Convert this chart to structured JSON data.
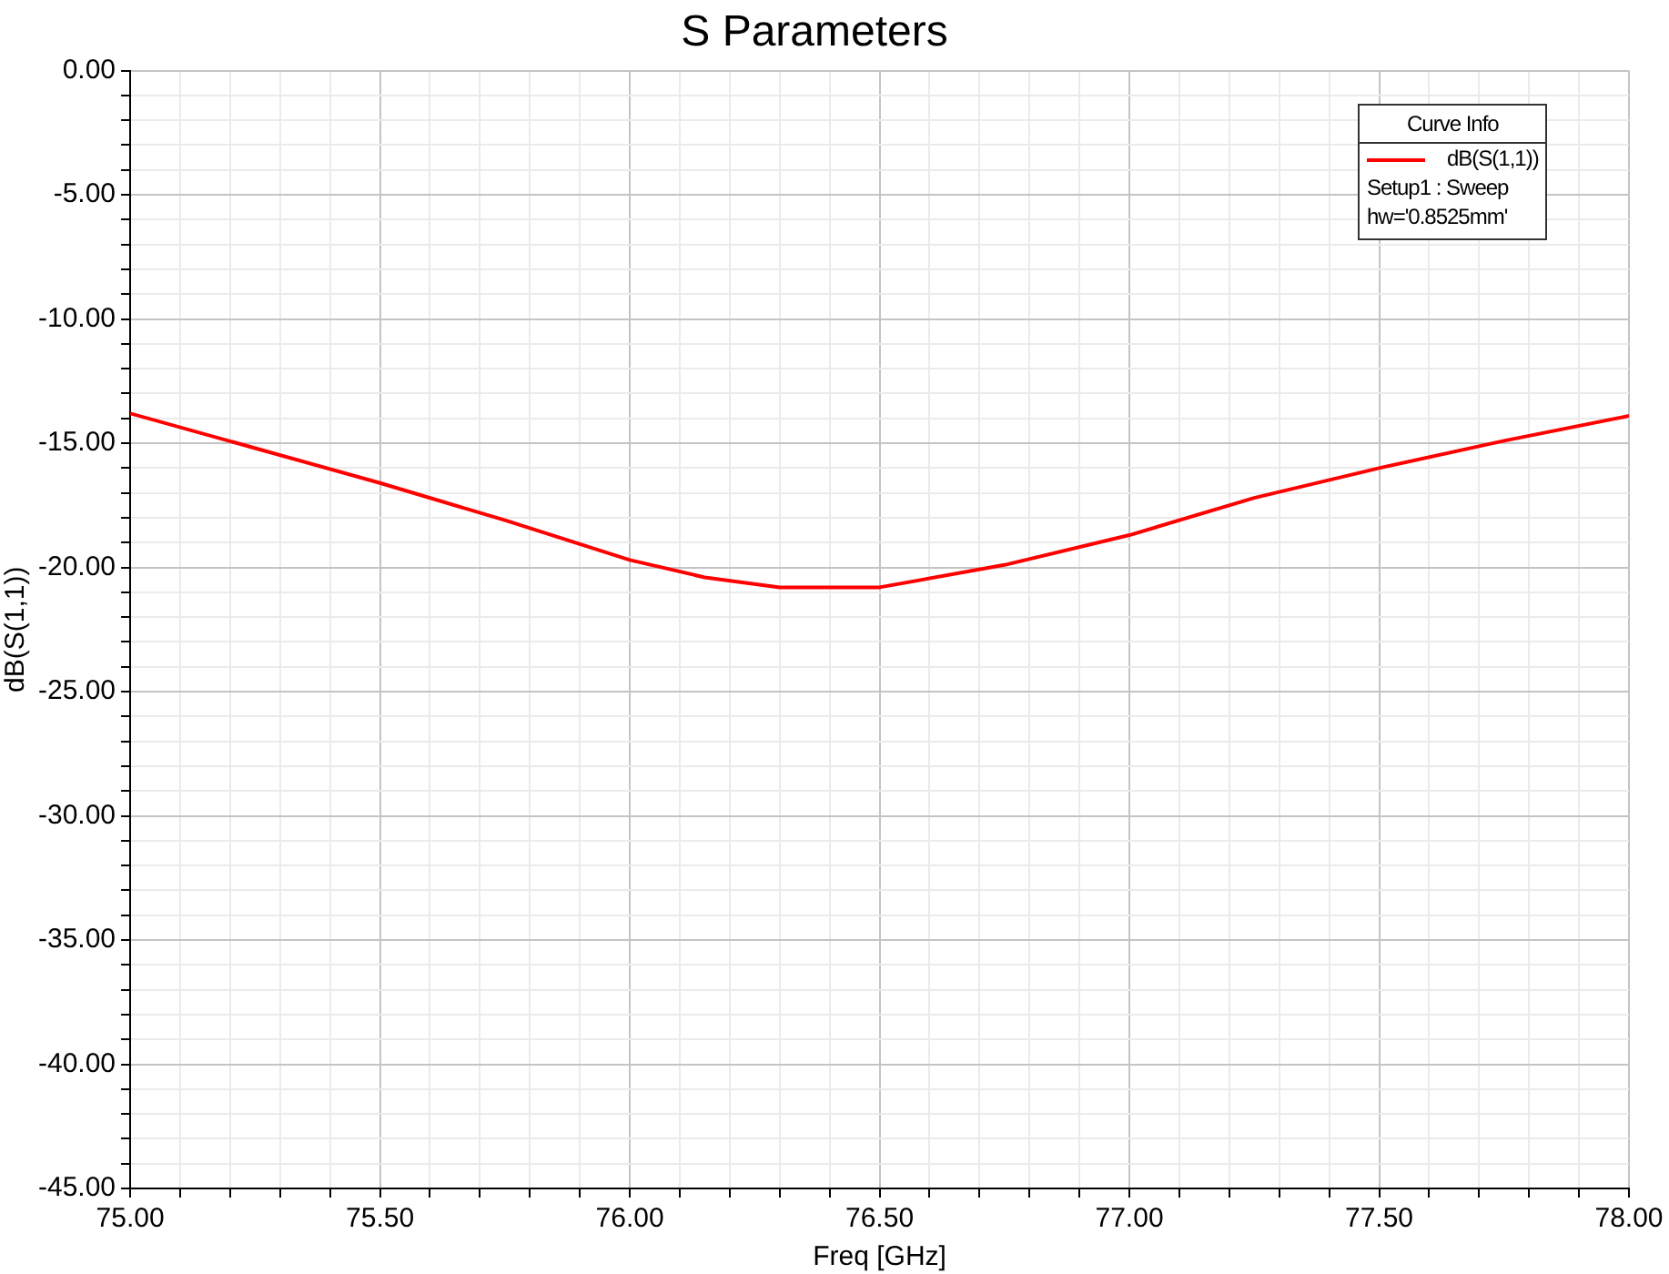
{
  "chart_data": {
    "type": "line",
    "title": "S Parameters",
    "xlabel": "Freq [GHz]",
    "ylabel": "dB(S(1,1))",
    "legend_title": "Curve Info",
    "legend": "top right",
    "grid": true,
    "marker": "none",
    "line_style": "solid",
    "annotations": [
      "Setup1 : Sweep",
      "hw='0.8525mm'"
    ],
    "x": [
      75,
      75.25,
      75.5,
      75.75,
      76,
      76.15,
      76.3,
      76.5,
      76.75,
      77,
      77.25,
      77.5,
      77.75,
      78
    ],
    "series": [
      {
        "name": "dB(S(1,1))",
        "color": "#ff0000",
        "values": [
          -13.8,
          -15.2,
          -16.6,
          -18.1,
          -19.7,
          -20.4,
          -20.8,
          -20.8,
          -19.9,
          -18.7,
          -17.2,
          -16.0,
          -14.9,
          -13.9
        ]
      }
    ],
    "xlim": [
      75,
      78
    ],
    "ylim": [
      -45,
      0
    ],
    "xticks": [
      {
        "value": 75,
        "label": "75.00"
      },
      {
        "value": 75.1,
        "label": null
      },
      {
        "value": 75.2,
        "label": null
      },
      {
        "value": 75.3,
        "label": null
      },
      {
        "value": 75.4,
        "label": null
      },
      {
        "value": 75.5,
        "label": "75.50"
      },
      {
        "value": 75.6,
        "label": null
      },
      {
        "value": 75.7,
        "label": null
      },
      {
        "value": 75.8,
        "label": null
      },
      {
        "value": 75.9,
        "label": null
      },
      {
        "value": 76,
        "label": "76.00"
      },
      {
        "value": 76.1,
        "label": null
      },
      {
        "value": 76.2,
        "label": null
      },
      {
        "value": 76.3,
        "label": null
      },
      {
        "value": 76.4,
        "label": null
      },
      {
        "value": 76.5,
        "label": "76.50"
      },
      {
        "value": 76.6,
        "label": null
      },
      {
        "value": 76.7,
        "label": null
      },
      {
        "value": 76.8,
        "label": null
      },
      {
        "value": 76.9,
        "label": null
      },
      {
        "value": 77,
        "label": "77.00"
      },
      {
        "value": 77.1,
        "label": null
      },
      {
        "value": 77.2,
        "label": null
      },
      {
        "value": 77.3,
        "label": null
      },
      {
        "value": 77.4,
        "label": null
      },
      {
        "value": 77.5,
        "label": "77.50"
      },
      {
        "value": 77.6,
        "label": null
      },
      {
        "value": 77.7,
        "label": null
      },
      {
        "value": 77.8,
        "label": null
      },
      {
        "value": 77.9,
        "label": null
      },
      {
        "value": 78,
        "label": "78.00"
      }
    ],
    "yticks": [
      {
        "value": -45,
        "label": "-45.00"
      },
      {
        "value": -44,
        "label": null
      },
      {
        "value": -43,
        "label": null
      },
      {
        "value": -42,
        "label": null
      },
      {
        "value": -41,
        "label": null
      },
      {
        "value": -40,
        "label": "-40.00"
      },
      {
        "value": -39,
        "label": null
      },
      {
        "value": -38,
        "label": null
      },
      {
        "value": -37,
        "label": null
      },
      {
        "value": -36,
        "label": null
      },
      {
        "value": -35,
        "label": "-35.00"
      },
      {
        "value": -34,
        "label": null
      },
      {
        "value": -33,
        "label": null
      },
      {
        "value": -32,
        "label": null
      },
      {
        "value": -31,
        "label": null
      },
      {
        "value": -30,
        "label": "-30.00"
      },
      {
        "value": -29,
        "label": null
      },
      {
        "value": -28,
        "label": null
      },
      {
        "value": -27,
        "label": null
      },
      {
        "value": -26,
        "label": null
      },
      {
        "value": -25,
        "label": "-25.00"
      },
      {
        "value": -24,
        "label": null
      },
      {
        "value": -23,
        "label": null
      },
      {
        "value": -22,
        "label": null
      },
      {
        "value": -21,
        "label": null
      },
      {
        "value": -20,
        "label": "-20.00"
      },
      {
        "value": -19,
        "label": null
      },
      {
        "value": -18,
        "label": null
      },
      {
        "value": -17,
        "label": null
      },
      {
        "value": -16,
        "label": null
      },
      {
        "value": -15,
        "label": "-15.00"
      },
      {
        "value": -14,
        "label": null
      },
      {
        "value": -13,
        "label": null
      },
      {
        "value": -12,
        "label": null
      },
      {
        "value": -11,
        "label": null
      },
      {
        "value": -10,
        "label": "-10.00"
      },
      {
        "value": -9,
        "label": null
      },
      {
        "value": -8,
        "label": null
      },
      {
        "value": -7,
        "label": null
      },
      {
        "value": -6,
        "label": null
      },
      {
        "value": -5,
        "label": "-5.00"
      },
      {
        "value": -4,
        "label": null
      },
      {
        "value": -3,
        "label": null
      },
      {
        "value": -2,
        "label": null
      },
      {
        "value": -1,
        "label": null
      },
      {
        "value": 0,
        "label": "0.00"
      }
    ]
  }
}
